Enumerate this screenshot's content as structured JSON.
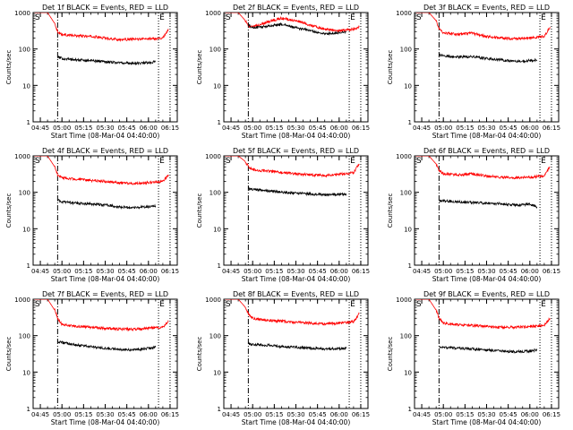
{
  "chart_data": [
    {
      "type": "line",
      "title": "Det 1f BLACK = Events, RED = LLD",
      "xlabel": "Start Time (08-Mar-04 04:40:00)",
      "ylabel": "Counts/sec",
      "yscale": "log",
      "ylim": [
        1,
        1000
      ],
      "xlim_minutes": [
        0,
        100
      ],
      "x_ticks": [
        "04:45",
        "05:00",
        "05:15",
        "05:30",
        "05:45",
        "06:00",
        "06:15"
      ],
      "y_ticks": [
        "1",
        "10",
        "100",
        "1000"
      ],
      "markers": {
        "start": "S",
        "end": "E",
        "dashdot_x": "04:57",
        "dotted_x": [
          "06:07",
          "06:15"
        ]
      },
      "series": [
        {
          "color": "#ff0000",
          "x": [
            "04:41",
            "04:45",
            "04:50",
            "04:55",
            "04:57",
            "05:00",
            "05:10",
            "05:20",
            "05:30",
            "05:40",
            "05:50",
            "06:00",
            "06:10",
            "06:14"
          ],
          "values": [
            1000,
            1000,
            1000,
            500,
            300,
            250,
            230,
            220,
            200,
            180,
            185,
            190,
            200,
            350
          ]
        },
        {
          "color": "#000000",
          "x": [
            "04:57",
            "05:00",
            "05:10",
            "05:20",
            "05:30",
            "05:40",
            "05:50",
            "06:00",
            "06:05"
          ],
          "values": [
            60,
            55,
            50,
            48,
            45,
            42,
            40,
            42,
            45
          ]
        }
      ]
    },
    {
      "type": "line",
      "title": "Det 2f BLACK = Events, RED = LLD",
      "xlabel": "Start Time (08-Mar-04 04:40:00)",
      "ylabel": "Counts/sec",
      "yscale": "log",
      "ylim": [
        1,
        1000
      ],
      "xlim_minutes": [
        0,
        100
      ],
      "x_ticks": [
        "04:45",
        "05:00",
        "05:15",
        "05:30",
        "05:45",
        "06:00",
        "06:15"
      ],
      "y_ticks": [
        "1",
        "10",
        "100",
        "1000"
      ],
      "markers": {
        "start": "S",
        "end": "E",
        "dashdot_x": "04:57",
        "dotted_x": [
          "06:07",
          "06:15"
        ]
      },
      "series": [
        {
          "color": "#ff0000",
          "x": [
            "04:41",
            "04:45",
            "04:50",
            "04:55",
            "04:57",
            "05:00",
            "05:10",
            "05:20",
            "05:30",
            "05:40",
            "05:50",
            "06:00",
            "06:10",
            "06:14"
          ],
          "values": [
            1000,
            1000,
            1000,
            600,
            420,
            400,
            550,
            700,
            600,
            450,
            350,
            320,
            350,
            400
          ]
        },
        {
          "color": "#000000",
          "x": [
            "04:57",
            "05:00",
            "05:10",
            "05:20",
            "05:30",
            "05:40",
            "05:50",
            "06:00",
            "06:05"
          ],
          "values": [
            450,
            380,
            420,
            480,
            380,
            320,
            260,
            280,
            300
          ]
        }
      ]
    },
    {
      "type": "line",
      "title": "Det 3f BLACK = Events, RED = LLD",
      "xlabel": "Start Time (08-Mar-04 04:40:00)",
      "ylabel": "Counts/sec",
      "yscale": "log",
      "ylim": [
        1,
        1000
      ],
      "xlim_minutes": [
        0,
        100
      ],
      "x_ticks": [
        "04:45",
        "05:00",
        "05:15",
        "05:30",
        "05:45",
        "06:00",
        "06:15"
      ],
      "y_ticks": [
        "1",
        "10",
        "100",
        "1000"
      ],
      "markers": {
        "start": "S",
        "end": "E",
        "dashdot_x": "04:57",
        "dotted_x": [
          "06:07",
          "06:15"
        ]
      },
      "series": [
        {
          "color": "#ff0000",
          "x": [
            "04:41",
            "04:45",
            "04:50",
            "04:55",
            "04:57",
            "05:00",
            "05:10",
            "05:20",
            "05:30",
            "05:40",
            "05:50",
            "06:00",
            "06:10",
            "06:14"
          ],
          "values": [
            1000,
            1000,
            1000,
            600,
            350,
            280,
            250,
            270,
            220,
            200,
            190,
            200,
            220,
            400
          ]
        },
        {
          "color": "#000000",
          "x": [
            "04:57",
            "05:00",
            "05:10",
            "05:20",
            "05:30",
            "05:40",
            "05:50",
            "06:00",
            "06:05"
          ],
          "values": [
            70,
            65,
            60,
            62,
            55,
            50,
            45,
            48,
            50
          ]
        }
      ]
    },
    {
      "type": "line",
      "title": "Det 4f BLACK = Events, RED = LLD",
      "xlabel": "Start Time (08-Mar-04 04:40:00)",
      "ylabel": "Counts/sec",
      "yscale": "log",
      "ylim": [
        1,
        1000
      ],
      "xlim_minutes": [
        0,
        100
      ],
      "x_ticks": [
        "04:45",
        "05:00",
        "05:15",
        "05:30",
        "05:45",
        "06:00",
        "06:15"
      ],
      "y_ticks": [
        "1",
        "10",
        "100",
        "1000"
      ],
      "markers": {
        "start": "S",
        "end": "E",
        "dashdot_x": "04:57",
        "dotted_x": [
          "06:07",
          "06:15"
        ]
      },
      "series": [
        {
          "color": "#ff0000",
          "x": [
            "04:41",
            "04:45",
            "04:50",
            "04:55",
            "04:57",
            "05:00",
            "05:10",
            "05:20",
            "05:30",
            "05:40",
            "05:50",
            "06:00",
            "06:10",
            "06:14"
          ],
          "values": [
            1000,
            1000,
            1000,
            500,
            300,
            250,
            230,
            210,
            200,
            180,
            175,
            185,
            200,
            300
          ]
        },
        {
          "color": "#000000",
          "x": [
            "04:57",
            "05:00",
            "05:10",
            "05:20",
            "05:30",
            "05:40",
            "05:50",
            "06:00",
            "06:05"
          ],
          "values": [
            60,
            55,
            50,
            48,
            45,
            40,
            38,
            40,
            42
          ]
        }
      ]
    },
    {
      "type": "line",
      "title": "Det 5f BLACK = Events, RED = LLD",
      "xlabel": "Start Time (08-Mar-04 04:40:00)",
      "ylabel": "Counts/sec",
      "yscale": "log",
      "ylim": [
        1,
        1000
      ],
      "xlim_minutes": [
        0,
        100
      ],
      "x_ticks": [
        "04:45",
        "05:00",
        "05:15",
        "05:30",
        "05:45",
        "06:00",
        "06:15"
      ],
      "y_ticks": [
        "1",
        "10",
        "100",
        "1000"
      ],
      "markers": {
        "start": "S",
        "end": "E",
        "dashdot_x": "04:57",
        "dotted_x": [
          "06:07",
          "06:15"
        ]
      },
      "series": [
        {
          "color": "#ff0000",
          "x": [
            "04:41",
            "04:45",
            "04:50",
            "04:55",
            "04:57",
            "05:00",
            "05:10",
            "05:20",
            "05:30",
            "05:40",
            "05:50",
            "06:00",
            "06:10",
            "06:14"
          ],
          "values": [
            1000,
            1000,
            1000,
            700,
            500,
            420,
            380,
            350,
            320,
            300,
            290,
            310,
            350,
            600
          ]
        },
        {
          "color": "#000000",
          "x": [
            "04:57",
            "05:00",
            "05:10",
            "05:20",
            "05:30",
            "05:40",
            "05:50",
            "06:00",
            "06:05"
          ],
          "values": [
            130,
            120,
            110,
            100,
            95,
            90,
            85,
            88,
            90
          ]
        }
      ]
    },
    {
      "type": "line",
      "title": "Det 6f BLACK = Events, RED = LLD",
      "xlabel": "Start Time (08-Mar-04 04:40:00)",
      "ylabel": "Counts/sec",
      "yscale": "log",
      "ylim": [
        1,
        1000
      ],
      "xlim_minutes": [
        0,
        100
      ],
      "x_ticks": [
        "04:45",
        "05:00",
        "05:15",
        "05:30",
        "05:45",
        "06:00",
        "06:15"
      ],
      "y_ticks": [
        "1",
        "10",
        "100",
        "1000"
      ],
      "markers": {
        "start": "S",
        "end": "E",
        "dashdot_x": "04:57",
        "dotted_x": [
          "06:07",
          "06:15"
        ]
      },
      "series": [
        {
          "color": "#ff0000",
          "x": [
            "04:41",
            "04:45",
            "04:50",
            "04:55",
            "04:57",
            "05:00",
            "05:10",
            "05:20",
            "05:30",
            "05:40",
            "05:50",
            "06:00",
            "06:10",
            "06:14"
          ],
          "values": [
            1000,
            1000,
            1000,
            600,
            400,
            320,
            300,
            320,
            280,
            260,
            250,
            260,
            280,
            500
          ]
        },
        {
          "color": "#000000",
          "x": [
            "04:57",
            "05:00",
            "05:10",
            "05:20",
            "05:30",
            "05:40",
            "05:50",
            "06:00",
            "06:05"
          ],
          "values": [
            60,
            58,
            55,
            52,
            50,
            48,
            45,
            47,
            40
          ]
        }
      ]
    },
    {
      "type": "line",
      "title": "Det 7f BLACK = Events, RED = LLD",
      "xlabel": "Start Time (08-Mar-04 04:40:00)",
      "ylabel": "Counts/sec",
      "yscale": "log",
      "ylim": [
        1,
        1000
      ],
      "xlim_minutes": [
        0,
        100
      ],
      "x_ticks": [
        "04:45",
        "05:00",
        "05:15",
        "05:30",
        "05:45",
        "06:00",
        "06:15"
      ],
      "y_ticks": [
        "1",
        "10",
        "100",
        "1000"
      ],
      "markers": {
        "start": "S",
        "end": "E",
        "dashdot_x": "04:57",
        "dotted_x": [
          "06:07",
          "06:15"
        ]
      },
      "series": [
        {
          "color": "#ff0000",
          "x": [
            "04:41",
            "04:45",
            "04:50",
            "04:55",
            "04:57",
            "05:00",
            "05:10",
            "05:20",
            "05:30",
            "05:40",
            "05:50",
            "06:00",
            "06:10",
            "06:14"
          ],
          "values": [
            1000,
            1000,
            1000,
            500,
            300,
            200,
            180,
            170,
            160,
            150,
            150,
            160,
            170,
            250
          ]
        },
        {
          "color": "#000000",
          "x": [
            "04:57",
            "05:00",
            "05:10",
            "05:20",
            "05:30",
            "05:40",
            "05:50",
            "06:00",
            "06:05"
          ],
          "values": [
            70,
            65,
            55,
            50,
            45,
            42,
            40,
            45,
            48
          ]
        }
      ]
    },
    {
      "type": "line",
      "title": "Det 8f BLACK = Events, RED = LLD",
      "xlabel": "Start Time (08-Mar-04 04:40:00)",
      "ylabel": "Counts/sec",
      "yscale": "log",
      "ylim": [
        1,
        1000
      ],
      "xlim_minutes": [
        0,
        100
      ],
      "x_ticks": [
        "04:45",
        "05:00",
        "05:15",
        "05:30",
        "05:45",
        "06:00",
        "06:15"
      ],
      "y_ticks": [
        "1",
        "10",
        "100",
        "1000"
      ],
      "markers": {
        "start": "S",
        "end": "E",
        "dashdot_x": "04:57",
        "dotted_x": [
          "06:07",
          "06:15"
        ]
      },
      "series": [
        {
          "color": "#ff0000",
          "x": [
            "04:41",
            "04:45",
            "04:50",
            "04:55",
            "04:57",
            "05:00",
            "05:10",
            "05:20",
            "05:30",
            "05:40",
            "05:50",
            "06:00",
            "06:10",
            "06:14"
          ],
          "values": [
            1000,
            1000,
            1000,
            600,
            400,
            300,
            260,
            250,
            230,
            220,
            210,
            220,
            240,
            400
          ]
        },
        {
          "color": "#000000",
          "x": [
            "04:57",
            "05:00",
            "05:10",
            "05:20",
            "05:30",
            "05:40",
            "05:50",
            "06:00",
            "06:05"
          ],
          "values": [
            60,
            58,
            55,
            50,
            48,
            45,
            43,
            44,
            45
          ]
        }
      ]
    },
    {
      "type": "line",
      "title": "Det 9f BLACK = Events, RED = LLD",
      "xlabel": "Start Time (08-Mar-04 04:40:00)",
      "ylabel": "Counts/sec",
      "yscale": "log",
      "ylim": [
        1,
        1000
      ],
      "xlim_minutes": [
        0,
        100
      ],
      "x_ticks": [
        "04:45",
        "05:00",
        "05:15",
        "05:30",
        "05:45",
        "06:00",
        "06:15"
      ],
      "y_ticks": [
        "1",
        "10",
        "100",
        "1000"
      ],
      "markers": {
        "start": "S",
        "end": "E",
        "dashdot_x": "04:57",
        "dotted_x": [
          "06:07",
          "06:15"
        ]
      },
      "series": [
        {
          "color": "#ff0000",
          "x": [
            "04:41",
            "04:45",
            "04:50",
            "04:55",
            "04:57",
            "05:00",
            "05:10",
            "05:20",
            "05:30",
            "05:40",
            "05:50",
            "06:00",
            "06:10",
            "06:14"
          ],
          "values": [
            1000,
            1000,
            1000,
            500,
            300,
            220,
            200,
            190,
            180,
            170,
            170,
            180,
            190,
            300
          ]
        },
        {
          "color": "#000000",
          "x": [
            "04:57",
            "05:00",
            "05:10",
            "05:20",
            "05:30",
            "05:40",
            "05:50",
            "06:00",
            "06:05"
          ],
          "values": [
            50,
            48,
            45,
            43,
            40,
            38,
            36,
            38,
            40
          ]
        }
      ]
    }
  ]
}
